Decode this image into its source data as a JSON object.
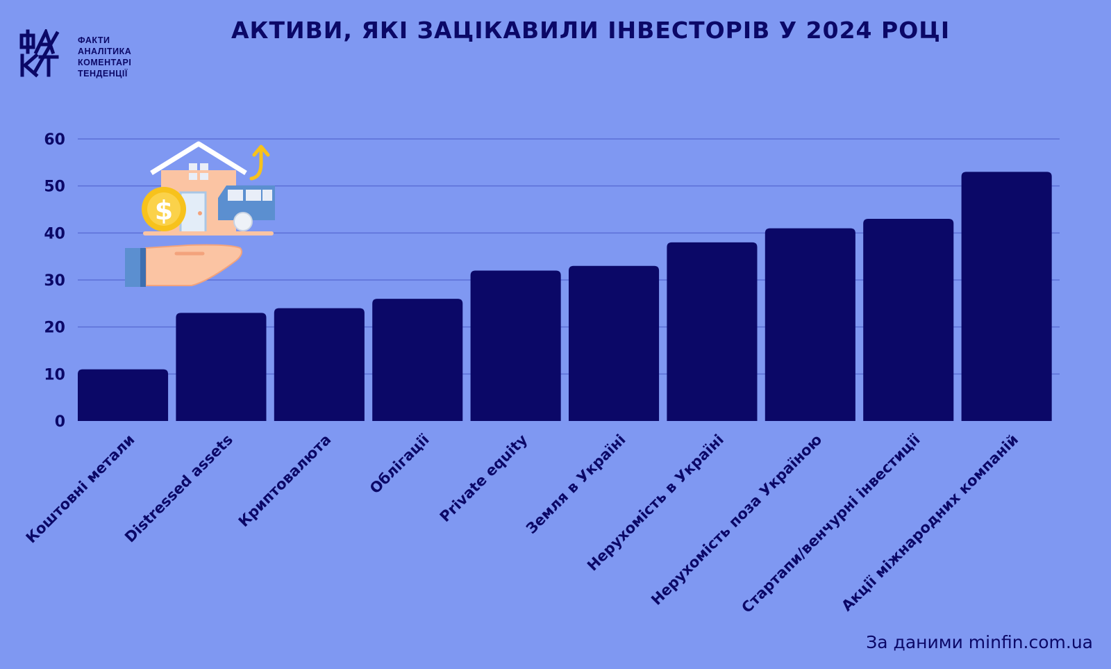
{
  "title": "АКТИВИ, ЯКІ ЗАЦІКАВИЛИ ІНВЕСТОРІВ У 2024 РОЦІ",
  "logo": {
    "mark": "ФАКТ",
    "taglines": [
      "ФАКТИ",
      "АНАЛІТИКА",
      "КОМЕНТАРІ",
      "ТЕНДЕНЦІЇ"
    ]
  },
  "source": "За даними minfin.com.ua",
  "colors": {
    "background": "#7f98f2",
    "bar": "#0b0867",
    "gridline": "#5b6fd6",
    "text": "#0b0867"
  },
  "chart_data": {
    "type": "bar",
    "title": "АКТИВИ, ЯКІ ЗАЦІКАВИЛИ ІНВЕСТОРІВ У 2024 РОЦІ",
    "categories": [
      "Коштовні метали",
      "Distressed assets",
      "Криптовалюта",
      "Облігації",
      "Private equity",
      "Земля в Україні",
      "Нерухомість в Україні",
      "Нерухомість поза Україною",
      "Стартапи/венчурні інвестиції",
      "Акції міжнародних компаній"
    ],
    "values": [
      11,
      23,
      24,
      26,
      32,
      33,
      38,
      41,
      43,
      53
    ],
    "yticks": [
      0,
      10,
      20,
      30,
      40,
      50,
      60
    ],
    "ylim": [
      0,
      60
    ],
    "xlabel": "",
    "ylabel": "",
    "grid": true,
    "legend": "none",
    "illustration": "hand-holding-house-money-car-icon"
  }
}
